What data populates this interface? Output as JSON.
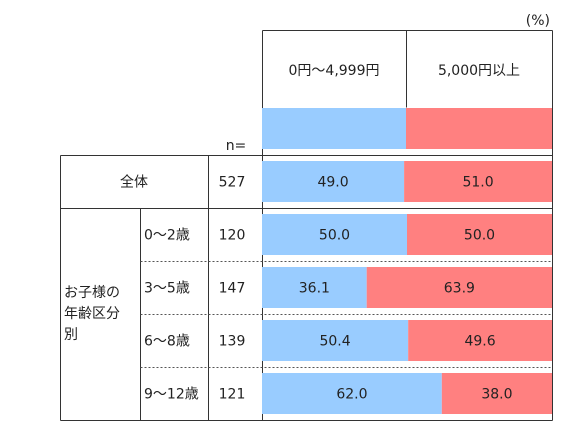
{
  "unit_label": "(%)",
  "n_label": "n=",
  "group_label_lines": [
    "お子様の",
    "年齢区分",
    "別"
  ],
  "chart_data": {
    "type": "bar",
    "stacked": true,
    "percent": true,
    "xlim": [
      0,
      100
    ],
    "series": [
      {
        "name": "0円～4,999円",
        "color": "#99CCFF"
      },
      {
        "name": "5,000円以上",
        "color": "#FF8080"
      }
    ],
    "rows": [
      {
        "label": "全体",
        "n": "527",
        "values": [
          49.0,
          51.0
        ],
        "value_labels": [
          "49.0",
          "51.0"
        ]
      },
      {
        "label": "0～2歳",
        "n": "120",
        "values": [
          50.0,
          50.0
        ],
        "value_labels": [
          "50.0",
          "50.0"
        ]
      },
      {
        "label": "3～5歳",
        "n": "147",
        "values": [
          36.1,
          63.9
        ],
        "value_labels": [
          "36.1",
          "63.9"
        ]
      },
      {
        "label": "6～8歳",
        "n": "139",
        "values": [
          50.4,
          49.6
        ],
        "value_labels": [
          "50.4",
          "49.6"
        ]
      },
      {
        "label": "9～12歳",
        "n": "121",
        "values": [
          62.0,
          38.0
        ],
        "value_labels": [
          "62.0",
          "38.0"
        ]
      }
    ]
  }
}
